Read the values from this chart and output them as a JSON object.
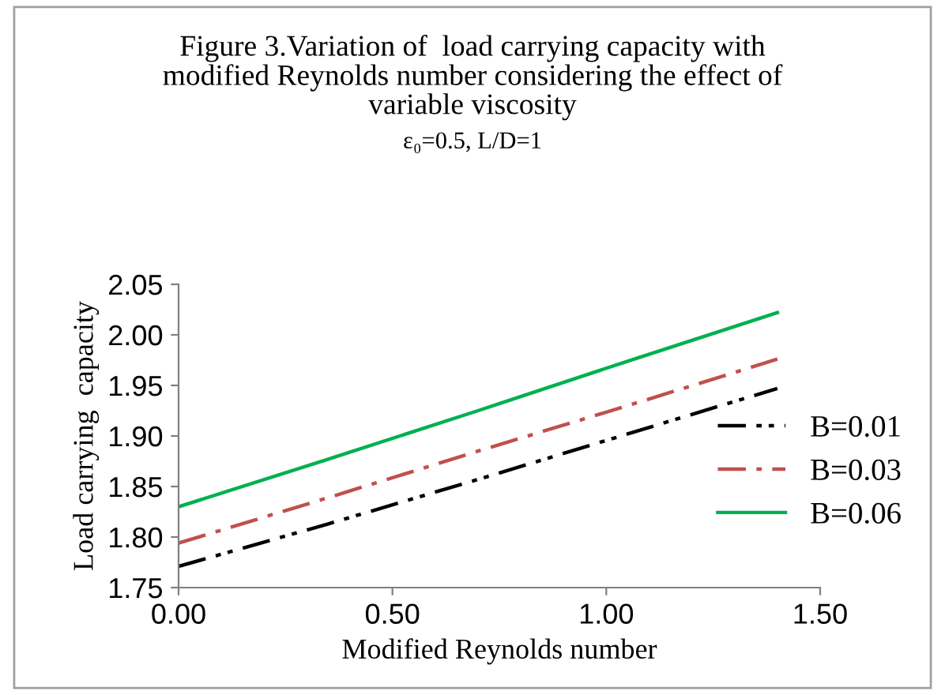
{
  "chart_data": {
    "type": "line",
    "title": "Figure 3.Variation of  load carrying capacity with\nmodified Reynolds number considering the effect of\nvariable viscosity",
    "subtitle": "ε₀=0.5, L/D=1",
    "xlabel": "Modified Reynolds number",
    "ylabel": "Load carrying  capacity",
    "x": [
      0,
      0.35,
      0.7,
      1.05,
      1.4
    ],
    "series": [
      {
        "name": "B=0.01",
        "color": "#000000",
        "line_style": "dashdotdot",
        "values": [
          1.771,
          1.813,
          1.857,
          1.902,
          1.947
        ]
      },
      {
        "name": "B=0.03",
        "color": "#c0504d",
        "line_style": "dashdot",
        "values": [
          1.794,
          1.839,
          1.885,
          1.93,
          1.976
        ]
      },
      {
        "name": "B=0.06",
        "color": "#00b050",
        "line_style": "solid",
        "values": [
          1.83,
          1.877,
          1.925,
          1.974,
          2.022
        ]
      }
    ],
    "xlim": [
      0,
      1.5
    ],
    "xticks": [
      {
        "value": 0,
        "label": "0.00"
      },
      {
        "value": 0.5,
        "label": "0.50"
      },
      {
        "value": 1,
        "label": "1.00"
      },
      {
        "value": 1.5,
        "label": "1.50"
      }
    ],
    "ylim": [
      1.75,
      2.05
    ],
    "yticks": [
      {
        "value": 1.75,
        "label": "1.75"
      },
      {
        "value": 1.8,
        "label": "1.80"
      },
      {
        "value": 1.85,
        "label": "1.85"
      },
      {
        "value": 1.9,
        "label": "1.90"
      },
      {
        "value": 1.95,
        "label": "1.95"
      },
      {
        "value": 2.0,
        "label": "2.00"
      },
      {
        "value": 2.05,
        "label": "2.05"
      }
    ],
    "grid": false,
    "legend": "right"
  }
}
